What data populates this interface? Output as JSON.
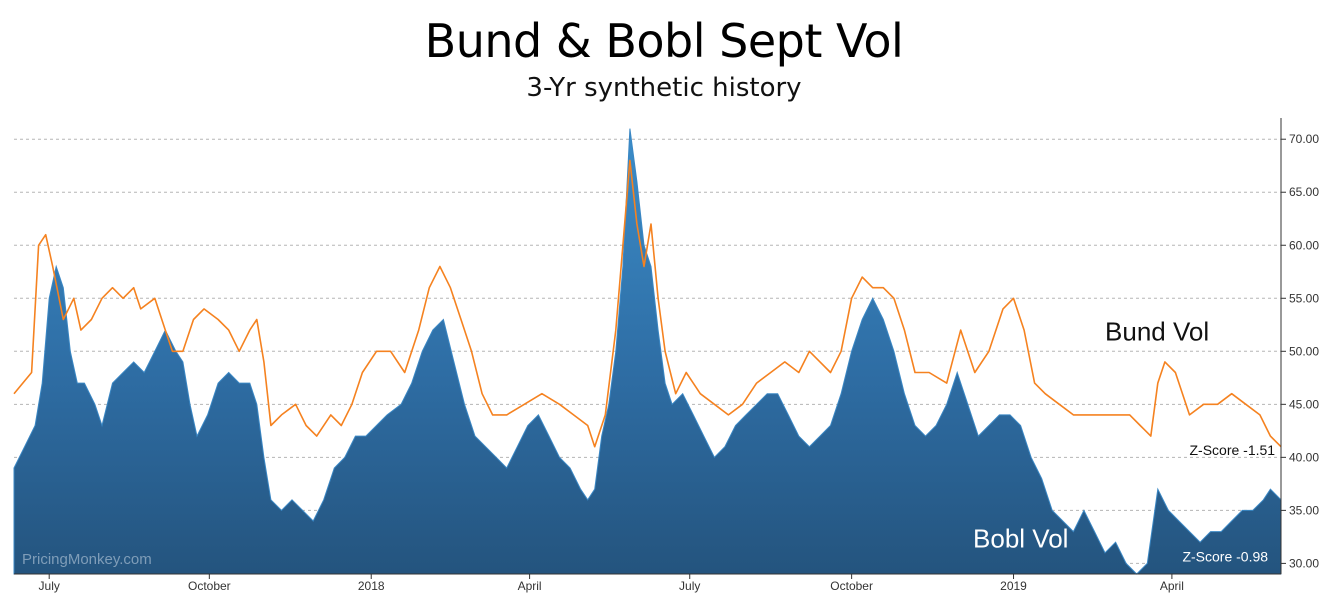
{
  "chart_data": {
    "type": "area",
    "title": "Bund & Bobl Sept Vol",
    "subtitle": "3-Yr synthetic history",
    "ylim": [
      29,
      72
    ],
    "yticks": [
      "30.00",
      "35.00",
      "40.00",
      "45.00",
      "50.00",
      "55.00",
      "60.00",
      "65.00",
      "70.00"
    ],
    "ytick_values": [
      30,
      35,
      40,
      45,
      50,
      55,
      60,
      65,
      70
    ],
    "y_axis_side": "right",
    "grid": "horizontal dashed",
    "xlim": [
      0,
      720
    ],
    "xticks": [
      {
        "label": "July",
        "value": 20
      },
      {
        "label": "October",
        "value": 111
      },
      {
        "label": "2018",
        "value": 203
      },
      {
        "label": "April",
        "value": 293
      },
      {
        "label": "July",
        "value": 384
      },
      {
        "label": "October",
        "value": 476
      },
      {
        "label": "2019",
        "value": 568
      },
      {
        "label": "April",
        "value": 658
      }
    ],
    "series": [
      {
        "name": "Bund Vol",
        "kind": "line",
        "color": "#f58220",
        "points": [
          [
            0,
            46
          ],
          [
            10,
            48
          ],
          [
            14,
            60
          ],
          [
            18,
            61
          ],
          [
            22,
            58
          ],
          [
            28,
            53
          ],
          [
            34,
            55
          ],
          [
            38,
            52
          ],
          [
            44,
            53
          ],
          [
            50,
            55
          ],
          [
            56,
            56
          ],
          [
            62,
            55
          ],
          [
            68,
            56
          ],
          [
            72,
            54
          ],
          [
            80,
            55
          ],
          [
            86,
            52
          ],
          [
            90,
            50
          ],
          [
            96,
            50
          ],
          [
            102,
            53
          ],
          [
            108,
            54
          ],
          [
            116,
            53
          ],
          [
            122,
            52
          ],
          [
            128,
            50
          ],
          [
            134,
            52
          ],
          [
            138,
            53
          ],
          [
            142,
            49
          ],
          [
            146,
            43
          ],
          [
            152,
            44
          ],
          [
            160,
            45
          ],
          [
            166,
            43
          ],
          [
            172,
            42
          ],
          [
            180,
            44
          ],
          [
            186,
            43
          ],
          [
            192,
            45
          ],
          [
            198,
            48
          ],
          [
            206,
            50
          ],
          [
            214,
            50
          ],
          [
            222,
            48
          ],
          [
            230,
            52
          ],
          [
            236,
            56
          ],
          [
            242,
            58
          ],
          [
            248,
            56
          ],
          [
            254,
            53
          ],
          [
            260,
            50
          ],
          [
            266,
            46
          ],
          [
            272,
            44
          ],
          [
            280,
            44
          ],
          [
            290,
            45
          ],
          [
            300,
            46
          ],
          [
            310,
            45
          ],
          [
            318,
            44
          ],
          [
            326,
            43
          ],
          [
            330,
            41
          ],
          [
            336,
            44
          ],
          [
            342,
            52
          ],
          [
            346,
            60
          ],
          [
            350,
            68
          ],
          [
            354,
            62
          ],
          [
            358,
            58
          ],
          [
            362,
            62
          ],
          [
            366,
            55
          ],
          [
            370,
            50
          ],
          [
            376,
            46
          ],
          [
            382,
            48
          ],
          [
            390,
            46
          ],
          [
            398,
            45
          ],
          [
            406,
            44
          ],
          [
            414,
            45
          ],
          [
            422,
            47
          ],
          [
            430,
            48
          ],
          [
            438,
            49
          ],
          [
            446,
            48
          ],
          [
            452,
            50
          ],
          [
            458,
            49
          ],
          [
            464,
            48
          ],
          [
            470,
            50
          ],
          [
            476,
            55
          ],
          [
            482,
            57
          ],
          [
            488,
            56
          ],
          [
            494,
            56
          ],
          [
            500,
            55
          ],
          [
            506,
            52
          ],
          [
            512,
            48
          ],
          [
            520,
            48
          ],
          [
            530,
            47
          ],
          [
            538,
            52
          ],
          [
            546,
            48
          ],
          [
            554,
            50
          ],
          [
            562,
            54
          ],
          [
            568,
            55
          ],
          [
            574,
            52
          ],
          [
            580,
            47
          ],
          [
            586,
            46
          ],
          [
            594,
            45
          ],
          [
            602,
            44
          ],
          [
            610,
            44
          ],
          [
            618,
            44
          ],
          [
            626,
            44
          ],
          [
            634,
            44
          ],
          [
            640,
            43
          ],
          [
            646,
            42
          ],
          [
            650,
            47
          ],
          [
            654,
            49
          ],
          [
            660,
            48
          ],
          [
            668,
            44
          ],
          [
            676,
            45
          ],
          [
            684,
            45
          ],
          [
            692,
            46
          ],
          [
            700,
            45
          ],
          [
            708,
            44
          ],
          [
            714,
            42
          ],
          [
            720,
            41
          ]
        ]
      },
      {
        "name": "Bobl Vol",
        "kind": "area",
        "color": "#2e6da4",
        "points": [
          [
            0,
            39
          ],
          [
            6,
            41
          ],
          [
            12,
            43
          ],
          [
            16,
            47
          ],
          [
            20,
            55
          ],
          [
            24,
            58
          ],
          [
            28,
            56
          ],
          [
            32,
            50
          ],
          [
            36,
            47
          ],
          [
            40,
            47
          ],
          [
            46,
            45
          ],
          [
            50,
            43
          ],
          [
            56,
            47
          ],
          [
            62,
            48
          ],
          [
            68,
            49
          ],
          [
            74,
            48
          ],
          [
            80,
            50
          ],
          [
            86,
            52
          ],
          [
            92,
            50
          ],
          [
            96,
            49
          ],
          [
            100,
            45
          ],
          [
            104,
            42
          ],
          [
            110,
            44
          ],
          [
            116,
            47
          ],
          [
            122,
            48
          ],
          [
            128,
            47
          ],
          [
            134,
            47
          ],
          [
            138,
            45
          ],
          [
            142,
            40
          ],
          [
            146,
            36
          ],
          [
            152,
            35
          ],
          [
            158,
            36
          ],
          [
            164,
            35
          ],
          [
            170,
            34
          ],
          [
            176,
            36
          ],
          [
            182,
            39
          ],
          [
            188,
            40
          ],
          [
            194,
            42
          ],
          [
            200,
            42
          ],
          [
            206,
            43
          ],
          [
            212,
            44
          ],
          [
            220,
            45
          ],
          [
            226,
            47
          ],
          [
            232,
            50
          ],
          [
            238,
            52
          ],
          [
            244,
            53
          ],
          [
            250,
            49
          ],
          [
            256,
            45
          ],
          [
            262,
            42
          ],
          [
            268,
            41
          ],
          [
            274,
            40
          ],
          [
            280,
            39
          ],
          [
            286,
            41
          ],
          [
            292,
            43
          ],
          [
            298,
            44
          ],
          [
            304,
            42
          ],
          [
            310,
            40
          ],
          [
            316,
            39
          ],
          [
            322,
            37
          ],
          [
            326,
            36
          ],
          [
            330,
            37
          ],
          [
            334,
            42
          ],
          [
            338,
            45
          ],
          [
            342,
            50
          ],
          [
            346,
            58
          ],
          [
            350,
            71
          ],
          [
            354,
            66
          ],
          [
            358,
            60
          ],
          [
            362,
            58
          ],
          [
            366,
            52
          ],
          [
            370,
            47
          ],
          [
            374,
            45
          ],
          [
            380,
            46
          ],
          [
            386,
            44
          ],
          [
            392,
            42
          ],
          [
            398,
            40
          ],
          [
            404,
            41
          ],
          [
            410,
            43
          ],
          [
            416,
            44
          ],
          [
            422,
            45
          ],
          [
            428,
            46
          ],
          [
            434,
            46
          ],
          [
            440,
            44
          ],
          [
            446,
            42
          ],
          [
            452,
            41
          ],
          [
            458,
            42
          ],
          [
            464,
            43
          ],
          [
            470,
            46
          ],
          [
            476,
            50
          ],
          [
            482,
            53
          ],
          [
            488,
            55
          ],
          [
            494,
            53
          ],
          [
            500,
            50
          ],
          [
            506,
            46
          ],
          [
            512,
            43
          ],
          [
            518,
            42
          ],
          [
            524,
            43
          ],
          [
            530,
            45
          ],
          [
            536,
            48
          ],
          [
            542,
            45
          ],
          [
            548,
            42
          ],
          [
            554,
            43
          ],
          [
            560,
            44
          ],
          [
            566,
            44
          ],
          [
            572,
            43
          ],
          [
            578,
            40
          ],
          [
            584,
            38
          ],
          [
            590,
            35
          ],
          [
            596,
            34
          ],
          [
            602,
            33
          ],
          [
            608,
            35
          ],
          [
            614,
            33
          ],
          [
            620,
            31
          ],
          [
            626,
            32
          ],
          [
            632,
            30
          ],
          [
            638,
            29
          ],
          [
            644,
            30
          ],
          [
            650,
            37
          ],
          [
            656,
            35
          ],
          [
            662,
            34
          ],
          [
            668,
            33
          ],
          [
            674,
            32
          ],
          [
            680,
            33
          ],
          [
            686,
            33
          ],
          [
            692,
            34
          ],
          [
            698,
            35
          ],
          [
            704,
            35
          ],
          [
            710,
            36
          ],
          [
            714,
            37
          ],
          [
            720,
            36
          ]
        ]
      }
    ],
    "annotations": [
      {
        "text": "Bund Vol",
        "color": "#111111",
        "x": 620,
        "y": 51,
        "size": "large"
      },
      {
        "text": "Z-Score -1.51",
        "color": "#111111",
        "x": 668,
        "y": 40.2,
        "size": "small"
      },
      {
        "text": "Bobl Vol",
        "color": "#ffffff",
        "x": 545,
        "y": 31.5,
        "size": "large"
      },
      {
        "text": "Z-Score -0.98",
        "color": "#ffffff",
        "x": 664,
        "y": 30.2,
        "size": "small"
      }
    ],
    "watermark": "PricingMonkey.com"
  }
}
